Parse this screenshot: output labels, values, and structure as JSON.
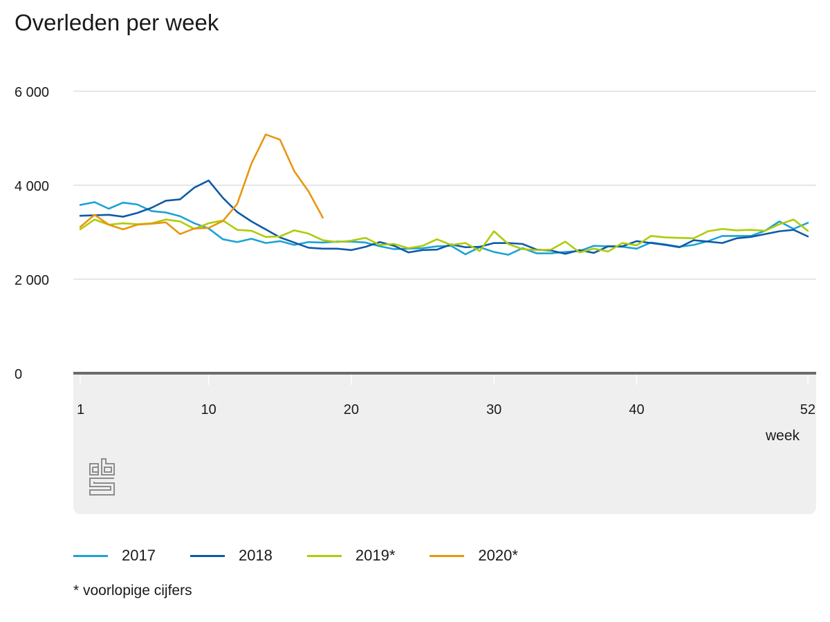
{
  "chart_data": {
    "type": "line",
    "title": "Overleden per week",
    "xlabel": "week",
    "ylabel": "",
    "x_ticks": [
      1,
      10,
      20,
      30,
      40,
      52
    ],
    "y_ticks": [
      0,
      2000,
      4000,
      6000
    ],
    "y_tick_labels": [
      "0",
      "2 000",
      "4 000",
      "6 000"
    ],
    "xlim": [
      1,
      52
    ],
    "ylim": [
      0,
      6000
    ],
    "grid": "horizontal",
    "legend_position": "bottom",
    "footnote": "* voorlopige cijfers",
    "series": [
      {
        "name": "2017",
        "color": "#1ba3d4",
        "values": [
          3580,
          3640,
          3500,
          3630,
          3590,
          3450,
          3420,
          3340,
          3190,
          3080,
          2850,
          2790,
          2860,
          2770,
          2810,
          2730,
          2790,
          2780,
          2800,
          2800,
          2780,
          2700,
          2640,
          2650,
          2660,
          2700,
          2710,
          2530,
          2680,
          2580,
          2520,
          2660,
          2550,
          2550,
          2580,
          2600,
          2710,
          2700,
          2690,
          2650,
          2780,
          2740,
          2690,
          2730,
          2810,
          2920,
          2920,
          2920,
          3030,
          3230,
          3070,
          3200
        ]
      },
      {
        "name": "2018",
        "color": "#0e5aa7",
        "values": [
          3350,
          3360,
          3370,
          3330,
          3410,
          3520,
          3670,
          3700,
          3950,
          4100,
          3730,
          3430,
          3230,
          3060,
          2890,
          2780,
          2670,
          2650,
          2650,
          2620,
          2690,
          2790,
          2710,
          2570,
          2620,
          2630,
          2740,
          2680,
          2690,
          2770,
          2770,
          2750,
          2630,
          2610,
          2540,
          2620,
          2560,
          2700,
          2700,
          2810,
          2770,
          2730,
          2680,
          2830,
          2800,
          2770,
          2870,
          2900,
          2960,
          3020,
          3050,
          2910
        ]
      },
      {
        "name": "2019*",
        "color": "#afcb05",
        "values": [
          3060,
          3270,
          3160,
          3190,
          3170,
          3190,
          3270,
          3230,
          3070,
          3190,
          3250,
          3050,
          3030,
          2900,
          2910,
          3040,
          2970,
          2830,
          2790,
          2820,
          2880,
          2730,
          2750,
          2660,
          2710,
          2850,
          2730,
          2770,
          2600,
          3020,
          2750,
          2640,
          2620,
          2630,
          2800,
          2570,
          2650,
          2590,
          2770,
          2720,
          2920,
          2890,
          2880,
          2870,
          3020,
          3070,
          3040,
          3050,
          3030,
          3170,
          3270,
          3030
        ]
      },
      {
        "name": "2020*",
        "color": "#e8960e",
        "values": [
          3110,
          3370,
          3160,
          3060,
          3160,
          3180,
          3210,
          2960,
          3080,
          3090,
          3240,
          3600,
          4460,
          5080,
          4970,
          4300,
          3870,
          3310
        ]
      }
    ]
  }
}
